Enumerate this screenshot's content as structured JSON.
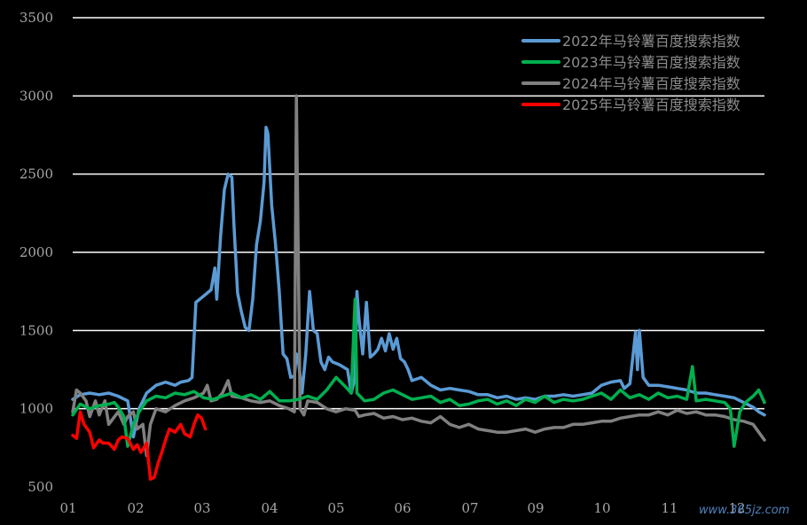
{
  "chart_data": {
    "type": "line",
    "ylim": [
      500,
      3500
    ],
    "yticks": [
      "500",
      "1000",
      "1500",
      "2000",
      "2500",
      "3000",
      "3500"
    ],
    "xlim": [
      1,
      366
    ],
    "xticks": [
      "01",
      "02",
      "03",
      "04",
      "05",
      "06",
      "07",
      "09",
      "10",
      "11",
      "12"
    ],
    "grid": true,
    "legend_position": "top-right",
    "series": [
      {
        "name": "2022年马铃薯百度搜索指数",
        "color": "#5b9bd5",
        "points": [
          [
            1,
            1060
          ],
          [
            5,
            1090
          ],
          [
            10,
            1100
          ],
          [
            15,
            1090
          ],
          [
            20,
            1100
          ],
          [
            25,
            1080
          ],
          [
            30,
            1050
          ],
          [
            33,
            820
          ],
          [
            36,
            1000
          ],
          [
            40,
            1100
          ],
          [
            45,
            1150
          ],
          [
            50,
            1170
          ],
          [
            55,
            1150
          ],
          [
            58,
            1170
          ],
          [
            62,
            1180
          ],
          [
            64,
            1200
          ],
          [
            66,
            1680
          ],
          [
            70,
            1720
          ],
          [
            74,
            1760
          ],
          [
            76,
            1900
          ],
          [
            77,
            1700
          ],
          [
            79,
            2100
          ],
          [
            81,
            2400
          ],
          [
            83,
            2500
          ],
          [
            85,
            2480
          ],
          [
            86,
            2200
          ],
          [
            88,
            1740
          ],
          [
            90,
            1620
          ],
          [
            92,
            1520
          ],
          [
            94,
            1500
          ],
          [
            96,
            1700
          ],
          [
            98,
            2050
          ],
          [
            100,
            2200
          ],
          [
            102,
            2450
          ],
          [
            103,
            2800
          ],
          [
            104,
            2760
          ],
          [
            106,
            2300
          ],
          [
            108,
            2050
          ],
          [
            110,
            1750
          ],
          [
            112,
            1350
          ],
          [
            114,
            1320
          ],
          [
            116,
            1200
          ],
          [
            118,
            1210
          ],
          [
            119,
            1350
          ],
          [
            120,
            1320
          ],
          [
            122,
            1100
          ],
          [
            124,
            1350
          ],
          [
            126,
            1750
          ],
          [
            128,
            1500
          ],
          [
            130,
            1480
          ],
          [
            132,
            1300
          ],
          [
            134,
            1250
          ],
          [
            136,
            1330
          ],
          [
            138,
            1300
          ],
          [
            142,
            1280
          ],
          [
            146,
            1250
          ],
          [
            148,
            1100
          ],
          [
            150,
            1200
          ],
          [
            151,
            1750
          ],
          [
            152,
            1580
          ],
          [
            154,
            1350
          ],
          [
            156,
            1680
          ],
          [
            158,
            1330
          ],
          [
            160,
            1350
          ],
          [
            162,
            1380
          ],
          [
            164,
            1450
          ],
          [
            166,
            1370
          ],
          [
            168,
            1480
          ],
          [
            170,
            1380
          ],
          [
            172,
            1450
          ],
          [
            174,
            1320
          ],
          [
            176,
            1300
          ],
          [
            178,
            1250
          ],
          [
            180,
            1180
          ],
          [
            185,
            1200
          ],
          [
            190,
            1150
          ],
          [
            195,
            1120
          ],
          [
            200,
            1130
          ],
          [
            205,
            1120
          ],
          [
            210,
            1110
          ],
          [
            215,
            1090
          ],
          [
            220,
            1090
          ],
          [
            225,
            1070
          ],
          [
            230,
            1080
          ],
          [
            235,
            1060
          ],
          [
            240,
            1070
          ],
          [
            245,
            1060
          ],
          [
            250,
            1080
          ],
          [
            255,
            1080
          ],
          [
            260,
            1090
          ],
          [
            265,
            1080
          ],
          [
            270,
            1090
          ],
          [
            275,
            1100
          ],
          [
            280,
            1150
          ],
          [
            285,
            1170
          ],
          [
            290,
            1180
          ],
          [
            292,
            1130
          ],
          [
            295,
            1160
          ],
          [
            298,
            1490
          ],
          [
            299,
            1250
          ],
          [
            300,
            1500
          ],
          [
            302,
            1200
          ],
          [
            305,
            1150
          ],
          [
            310,
            1150
          ],
          [
            315,
            1140
          ],
          [
            320,
            1130
          ],
          [
            325,
            1120
          ],
          [
            330,
            1100
          ],
          [
            335,
            1100
          ],
          [
            340,
            1090
          ],
          [
            345,
            1080
          ],
          [
            350,
            1070
          ],
          [
            355,
            1040
          ],
          [
            360,
            1010
          ],
          [
            363,
            980
          ],
          [
            366,
            960
          ]
        ]
      },
      {
        "name": "2023年马铃薯百度搜索指数",
        "color": "#00b050",
        "points": [
          [
            1,
            960
          ],
          [
            5,
            1030
          ],
          [
            10,
            1000
          ],
          [
            15,
            1020
          ],
          [
            20,
            1030
          ],
          [
            23,
            1040
          ],
          [
            25,
            1010
          ],
          [
            28,
            950
          ],
          [
            30,
            760
          ],
          [
            33,
            900
          ],
          [
            36,
            980
          ],
          [
            40,
            1050
          ],
          [
            45,
            1080
          ],
          [
            50,
            1070
          ],
          [
            55,
            1100
          ],
          [
            60,
            1090
          ],
          [
            65,
            1110
          ],
          [
            70,
            1070
          ],
          [
            75,
            1060
          ],
          [
            80,
            1080
          ],
          [
            85,
            1100
          ],
          [
            90,
            1070
          ],
          [
            95,
            1090
          ],
          [
            100,
            1060
          ],
          [
            105,
            1110
          ],
          [
            110,
            1050
          ],
          [
            115,
            1050
          ],
          [
            120,
            1060
          ],
          [
            125,
            1080
          ],
          [
            130,
            1060
          ],
          [
            135,
            1120
          ],
          [
            140,
            1200
          ],
          [
            145,
            1140
          ],
          [
            148,
            1100
          ],
          [
            150,
            1700
          ],
          [
            151,
            1100
          ],
          [
            155,
            1050
          ],
          [
            160,
            1060
          ],
          [
            165,
            1100
          ],
          [
            170,
            1120
          ],
          [
            175,
            1090
          ],
          [
            180,
            1060
          ],
          [
            185,
            1070
          ],
          [
            190,
            1080
          ],
          [
            195,
            1040
          ],
          [
            200,
            1060
          ],
          [
            205,
            1020
          ],
          [
            210,
            1030
          ],
          [
            215,
            1050
          ],
          [
            220,
            1060
          ],
          [
            225,
            1030
          ],
          [
            230,
            1050
          ],
          [
            235,
            1020
          ],
          [
            240,
            1060
          ],
          [
            245,
            1040
          ],
          [
            250,
            1080
          ],
          [
            255,
            1040
          ],
          [
            260,
            1060
          ],
          [
            265,
            1050
          ],
          [
            270,
            1060
          ],
          [
            275,
            1080
          ],
          [
            280,
            1100
          ],
          [
            285,
            1060
          ],
          [
            290,
            1120
          ],
          [
            295,
            1070
          ],
          [
            300,
            1090
          ],
          [
            305,
            1060
          ],
          [
            310,
            1100
          ],
          [
            315,
            1070
          ],
          [
            320,
            1080
          ],
          [
            325,
            1060
          ],
          [
            328,
            1270
          ],
          [
            330,
            1050
          ],
          [
            335,
            1060
          ],
          [
            340,
            1050
          ],
          [
            345,
            1040
          ],
          [
            348,
            1000
          ],
          [
            350,
            760
          ],
          [
            353,
            980
          ],
          [
            356,
            1040
          ],
          [
            360,
            1080
          ],
          [
            363,
            1120
          ],
          [
            366,
            1040
          ]
        ]
      },
      {
        "name": "2024年马铃薯百度搜索指数",
        "color": "#808080",
        "points": [
          [
            1,
            980
          ],
          [
            3,
            1120
          ],
          [
            5,
            1100
          ],
          [
            8,
            1050
          ],
          [
            10,
            950
          ],
          [
            13,
            1050
          ],
          [
            15,
            960
          ],
          [
            18,
            1050
          ],
          [
            20,
            900
          ],
          [
            25,
            980
          ],
          [
            28,
            900
          ],
          [
            30,
            950
          ],
          [
            33,
            980
          ],
          [
            35,
            870
          ],
          [
            38,
            900
          ],
          [
            40,
            700
          ],
          [
            42,
            900
          ],
          [
            45,
            1000
          ],
          [
            50,
            980
          ],
          [
            55,
            1020
          ],
          [
            60,
            1050
          ],
          [
            65,
            1070
          ],
          [
            70,
            1100
          ],
          [
            72,
            1150
          ],
          [
            74,
            1050
          ],
          [
            77,
            1060
          ],
          [
            80,
            1100
          ],
          [
            83,
            1180
          ],
          [
            85,
            1080
          ],
          [
            90,
            1070
          ],
          [
            95,
            1050
          ],
          [
            100,
            1040
          ],
          [
            105,
            1050
          ],
          [
            110,
            1020
          ],
          [
            115,
            1000
          ],
          [
            118,
            980
          ],
          [
            119,
            3000
          ],
          [
            121,
            1000
          ],
          [
            123,
            960
          ],
          [
            125,
            1050
          ],
          [
            130,
            1040
          ],
          [
            135,
            1000
          ],
          [
            140,
            980
          ],
          [
            145,
            1000
          ],
          [
            150,
            990
          ],
          [
            152,
            950
          ],
          [
            155,
            960
          ],
          [
            160,
            970
          ],
          [
            165,
            940
          ],
          [
            170,
            950
          ],
          [
            175,
            930
          ],
          [
            180,
            940
          ],
          [
            185,
            920
          ],
          [
            190,
            910
          ],
          [
            195,
            950
          ],
          [
            200,
            900
          ],
          [
            205,
            880
          ],
          [
            210,
            900
          ],
          [
            215,
            870
          ],
          [
            220,
            860
          ],
          [
            225,
            850
          ],
          [
            230,
            850
          ],
          [
            235,
            860
          ],
          [
            240,
            870
          ],
          [
            245,
            850
          ],
          [
            250,
            870
          ],
          [
            255,
            880
          ],
          [
            260,
            880
          ],
          [
            265,
            900
          ],
          [
            270,
            900
          ],
          [
            275,
            910
          ],
          [
            280,
            920
          ],
          [
            285,
            920
          ],
          [
            290,
            940
          ],
          [
            295,
            950
          ],
          [
            300,
            960
          ],
          [
            305,
            960
          ],
          [
            310,
            980
          ],
          [
            315,
            960
          ],
          [
            320,
            990
          ],
          [
            325,
            970
          ],
          [
            330,
            980
          ],
          [
            335,
            960
          ],
          [
            340,
            960
          ],
          [
            345,
            950
          ],
          [
            350,
            930
          ],
          [
            355,
            920
          ],
          [
            360,
            900
          ],
          [
            363,
            850
          ],
          [
            366,
            800
          ]
        ]
      },
      {
        "name": "2025年马铃薯百度搜索指数",
        "color": "#ff0000",
        "points": [
          [
            1,
            830
          ],
          [
            3,
            810
          ],
          [
            5,
            980
          ],
          [
            7,
            900
          ],
          [
            10,
            850
          ],
          [
            12,
            750
          ],
          [
            15,
            800
          ],
          [
            17,
            780
          ],
          [
            20,
            780
          ],
          [
            23,
            740
          ],
          [
            25,
            800
          ],
          [
            27,
            820
          ],
          [
            30,
            810
          ],
          [
            33,
            740
          ],
          [
            35,
            770
          ],
          [
            37,
            720
          ],
          [
            40,
            780
          ],
          [
            42,
            550
          ],
          [
            44,
            560
          ],
          [
            46,
            650
          ],
          [
            48,
            720
          ],
          [
            50,
            800
          ],
          [
            52,
            870
          ],
          [
            55,
            850
          ],
          [
            58,
            900
          ],
          [
            60,
            840
          ],
          [
            63,
            820
          ],
          [
            65,
            900
          ],
          [
            67,
            960
          ],
          [
            69,
            940
          ],
          [
            71,
            870
          ]
        ]
      }
    ]
  },
  "watermark": "www.365jz.com"
}
